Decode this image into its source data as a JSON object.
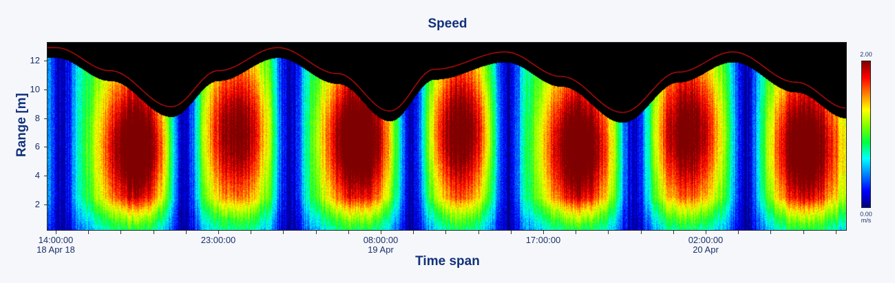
{
  "title": "Speed",
  "axes": {
    "ylabel": "Range [m]",
    "xlabel": "Time span"
  },
  "colorbar": {
    "max_label": "2.00",
    "min_label": "0.00",
    "unit_label": "m/s",
    "stops": [
      "#00007f",
      "#0000ff",
      "#007fff",
      "#00ffff",
      "#00ff40",
      "#7fff00",
      "#ffff00",
      "#ff7f00",
      "#ff0000",
      "#7f0000"
    ]
  },
  "colors": {
    "title": "#13317a",
    "surface_line": "#e01010",
    "background": "#f5f7fb",
    "no_data": "#000000"
  },
  "chart_data": {
    "type": "heatmap",
    "title": "Speed",
    "xlabel": "Time span",
    "ylabel": "Range [m]",
    "colorbar_label": "m/s",
    "zlim": [
      0.0,
      2.0
    ],
    "ylim": [
      0.2,
      13.3
    ],
    "yticks": [
      2,
      4,
      6,
      8,
      10,
      12
    ],
    "xlim_hours_from_start": [
      -0.5,
      43.8
    ],
    "xticks": [
      {
        "label": "14:00:00",
        "sublabel": "18 Apr 18",
        "hours": 0
      },
      {
        "label": "23:00:00",
        "sublabel": "",
        "hours": 9
      },
      {
        "label": "08:00:00",
        "sublabel": "19 Apr",
        "hours": 18
      },
      {
        "label": "17:00:00",
        "sublabel": "",
        "hours": 27
      },
      {
        "label": "02:00:00",
        "sublabel": "20 Apr",
        "hours": 36
      }
    ],
    "minor_tick_interval_hours": 1.8,
    "surface_profile_m": {
      "hours": [
        -0.5,
        0.0,
        3.0,
        6.4,
        9.0,
        12.3,
        15.6,
        18.5,
        21.0,
        24.9,
        28.0,
        31.4,
        34.5,
        37.5,
        41.0,
        43.8
      ],
      "range": [
        12.2,
        12.2,
        10.6,
        8.1,
        10.6,
        12.2,
        10.4,
        7.8,
        10.7,
        11.9,
        10.2,
        7.7,
        10.5,
        11.9,
        9.8,
        8.0
      ]
    },
    "surface_line_offset_m": 0.7,
    "slack_water_hours": [
      0.3,
      7.1,
      12.9,
      19.7,
      25.0,
      32.0,
      38.2
    ],
    "peak_speed_regions": [
      {
        "hours": 4.5,
        "range_center_m": 6.0,
        "speed": 1.75
      },
      {
        "hours": 10.0,
        "range_center_m": 7.0,
        "speed": 1.5
      },
      {
        "hours": 16.8,
        "range_center_m": 6.5,
        "speed": 1.8
      },
      {
        "hours": 22.4,
        "range_center_m": 7.0,
        "speed": 1.55
      },
      {
        "hours": 29.0,
        "range_center_m": 6.0,
        "speed": 1.75
      },
      {
        "hours": 35.0,
        "range_center_m": 7.0,
        "speed": 1.55
      },
      {
        "hours": 41.5,
        "range_center_m": 6.0,
        "speed": 1.7
      }
    ],
    "near_bed_speed": 0.6
  }
}
